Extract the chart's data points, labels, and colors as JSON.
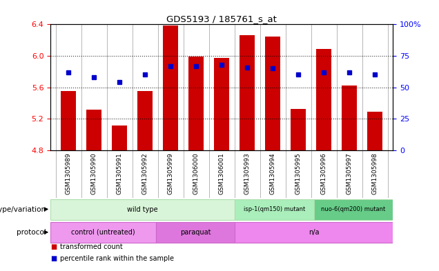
{
  "title": "GDS5193 / 185761_s_at",
  "samples": [
    "GSM1305989",
    "GSM1305990",
    "GSM1305991",
    "GSM1305992",
    "GSM1305999",
    "GSM1306000",
    "GSM1306001",
    "GSM1305993",
    "GSM1305994",
    "GSM1305995",
    "GSM1305996",
    "GSM1305997",
    "GSM1305998"
  ],
  "bar_values": [
    5.55,
    5.32,
    5.12,
    5.55,
    6.39,
    5.99,
    5.97,
    6.26,
    6.25,
    5.33,
    6.09,
    5.62,
    5.29
  ],
  "dot_values_pct": [
    62,
    58,
    54,
    60,
    67,
    67,
    68,
    66,
    65,
    60,
    62,
    62,
    60
  ],
  "ylim_left": [
    4.8,
    6.4
  ],
  "ylim_right": [
    0,
    100
  ],
  "bar_color": "#cc0000",
  "dot_color": "#0000cc",
  "right_ticks": [
    0,
    25,
    50,
    75,
    100
  ],
  "left_ticks": [
    4.8,
    5.2,
    5.6,
    6.0,
    6.4
  ],
  "dotted_lines": [
    5.2,
    5.6,
    6.0
  ],
  "genotype_groups": [
    {
      "label": "wild type",
      "start": 0,
      "end": 7,
      "color": "#d9f5d9",
      "border": "#aaddaa"
    },
    {
      "label": "isp-1(qm150) mutant",
      "start": 7,
      "end": 10,
      "color": "#aaeebb",
      "border": "#aaddaa"
    },
    {
      "label": "nuo-6(qm200) mutant",
      "start": 10,
      "end": 13,
      "color": "#66cc88",
      "border": "#aaddaa"
    }
  ],
  "protocol_groups": [
    {
      "label": "control (untreated)",
      "start": 0,
      "end": 4,
      "color": "#ee99ee",
      "border": "#cc66cc"
    },
    {
      "label": "paraquat",
      "start": 4,
      "end": 7,
      "color": "#dd77dd",
      "border": "#cc66cc"
    },
    {
      "label": "n/a",
      "start": 7,
      "end": 13,
      "color": "#ee88ee",
      "border": "#cc66cc"
    }
  ],
  "legend_items": [
    {
      "label": "transformed count",
      "color": "#cc0000"
    },
    {
      "label": "percentile rank within the sample",
      "color": "#0000cc"
    }
  ],
  "bg_gray": "#e0e0e0"
}
